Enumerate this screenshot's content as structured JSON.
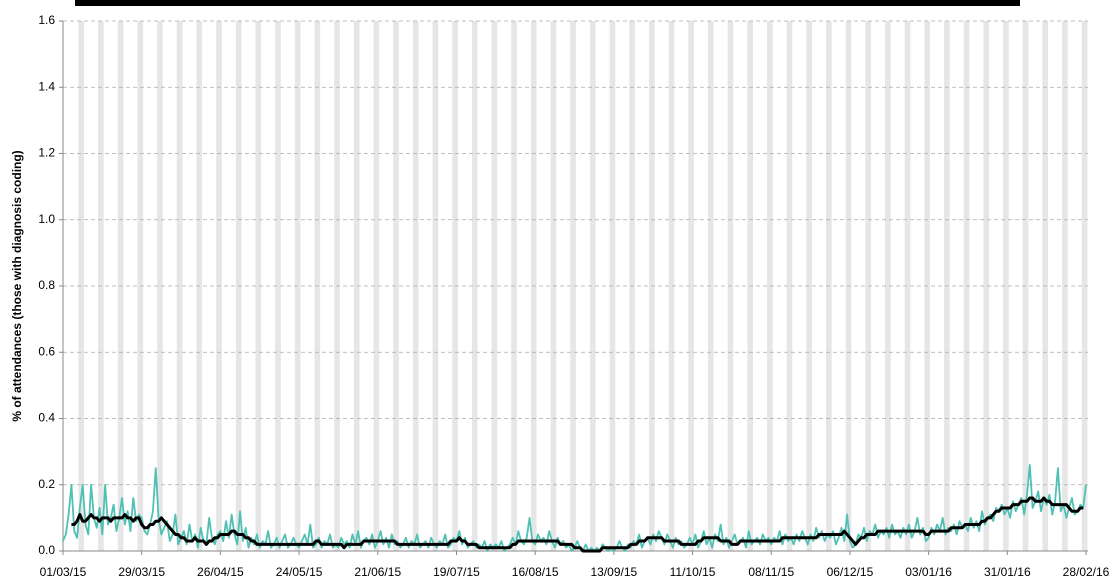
{
  "chart_data": {
    "type": "line",
    "y_label": "% of attendances (those with diagnosis coding)",
    "ylim": [
      0,
      1.6
    ],
    "yticks": [
      {
        "value": 0,
        "label": "0.0"
      },
      0.2,
      0.4,
      0.6,
      0.8,
      {
        "value": 1,
        "label": "1.0"
      },
      1.2,
      1.4,
      1.6
    ],
    "grid": true,
    "categories": [
      "01/03/15",
      null,
      null,
      null,
      null,
      null,
      null,
      null,
      null,
      null,
      null,
      null,
      null,
      null,
      null,
      null,
      null,
      null,
      null,
      null,
      null,
      null,
      null,
      null,
      null,
      null,
      null,
      null,
      "29/03/15",
      null,
      null,
      null,
      null,
      null,
      null,
      null,
      null,
      null,
      null,
      null,
      null,
      null,
      null,
      null,
      null,
      null,
      null,
      null,
      null,
      null,
      null,
      null,
      null,
      null,
      null,
      null,
      "26/04/15",
      null,
      null,
      null,
      null,
      null,
      null,
      null,
      null,
      null,
      null,
      null,
      null,
      null,
      null,
      null,
      null,
      null,
      null,
      null,
      null,
      null,
      null,
      null,
      null,
      null,
      null,
      null,
      "24/05/15",
      null,
      null,
      null,
      null,
      null,
      null,
      null,
      null,
      null,
      null,
      null,
      null,
      null,
      null,
      null,
      null,
      null,
      null,
      null,
      null,
      null,
      null,
      null,
      null,
      null,
      null,
      null,
      "21/06/15",
      null,
      null,
      null,
      null,
      null,
      null,
      null,
      null,
      null,
      null,
      null,
      null,
      null,
      null,
      null,
      null,
      null,
      null,
      null,
      null,
      null,
      null,
      null,
      null,
      null,
      null,
      null,
      "19/07/15",
      null,
      null,
      null,
      null,
      null,
      null,
      null,
      null,
      null,
      null,
      null,
      null,
      null,
      null,
      null,
      null,
      null,
      null,
      null,
      null,
      null,
      null,
      null,
      null,
      null,
      null,
      null,
      "16/08/15",
      null,
      null,
      null,
      null,
      null,
      null,
      null,
      null,
      null,
      null,
      null,
      null,
      null,
      null,
      null,
      null,
      null,
      null,
      null,
      null,
      null,
      null,
      null,
      null,
      null,
      null,
      null,
      "13/09/15",
      null,
      null,
      null,
      null,
      null,
      null,
      null,
      null,
      null,
      null,
      null,
      null,
      null,
      null,
      null,
      null,
      null,
      null,
      null,
      null,
      null,
      null,
      null,
      null,
      null,
      null,
      null,
      "11/10/15",
      null,
      null,
      null,
      null,
      null,
      null,
      null,
      null,
      null,
      null,
      null,
      null,
      null,
      null,
      null,
      null,
      null,
      null,
      null,
      null,
      null,
      null,
      null,
      null,
      null,
      null,
      null,
      "08/11/15",
      null,
      null,
      null,
      null,
      null,
      null,
      null,
      null,
      null,
      null,
      null,
      null,
      null,
      null,
      null,
      null,
      null,
      null,
      null,
      null,
      null,
      null,
      null,
      null,
      null,
      null,
      null,
      "06/12/15",
      null,
      null,
      null,
      null,
      null,
      null,
      null,
      null,
      null,
      null,
      null,
      null,
      null,
      null,
      null,
      null,
      null,
      null,
      null,
      null,
      null,
      null,
      null,
      null,
      null,
      null,
      null,
      "03/01/16",
      null,
      null,
      null,
      null,
      null,
      null,
      null,
      null,
      null,
      null,
      null,
      null,
      null,
      null,
      null,
      null,
      null,
      null,
      null,
      null,
      null,
      null,
      null,
      null,
      null,
      null,
      null,
      "31/01/16",
      null,
      null,
      null,
      null,
      null,
      null,
      null,
      null,
      null,
      null,
      null,
      null,
      null,
      null,
      null,
      null,
      null,
      null,
      null,
      null,
      null,
      null,
      null,
      null,
      null,
      null,
      null,
      "28/02/16"
    ],
    "series": [
      {
        "color": "#4fc0b4",
        "values": [
          0.03,
          0.05,
          0.11,
          0.2,
          0.06,
          0.04,
          0.13,
          0.2,
          0.08,
          0.05,
          0.2,
          0.1,
          0.07,
          0.13,
          0.05,
          0.2,
          0.08,
          0.1,
          0.14,
          0.06,
          0.1,
          0.16,
          0.08,
          0.12,
          0.06,
          0.16,
          0.09,
          0.11,
          0.1,
          0.06,
          0.05,
          0.08,
          0.12,
          0.25,
          0.1,
          0.05,
          0.07,
          0.09,
          0.03,
          0.05,
          0.11,
          0.02,
          0.04,
          0.06,
          0.02,
          0.08,
          0.03,
          0.05,
          0.01,
          0.07,
          0.03,
          0.02,
          0.1,
          0.04,
          0.02,
          0.05,
          0.06,
          0.03,
          0.09,
          0.04,
          0.11,
          0.05,
          0.02,
          0.12,
          0.03,
          0.07,
          0.01,
          0.04,
          0.02,
          0.05,
          0.01,
          0.03,
          0.02,
          0.06,
          0.01,
          0.02,
          0.04,
          0.01,
          0.03,
          0.05,
          0.01,
          0.02,
          0.04,
          0.02,
          0.01,
          0.03,
          0.05,
          0.02,
          0.08,
          0.01,
          0.02,
          0.04,
          0.01,
          0.03,
          0.02,
          0.05,
          0.01,
          0.02,
          0.01,
          0.04,
          0.02,
          0.03,
          0.01,
          0.05,
          0.02,
          0.06,
          0.01,
          0.03,
          0.04,
          0.02,
          0.05,
          0.01,
          0.03,
          0.06,
          0.02,
          0.04,
          0.01,
          0.05,
          0.02,
          0.03,
          0.01,
          0.02,
          0.04,
          0.01,
          0.03,
          0.02,
          0.05,
          0.01,
          0.02,
          0.03,
          0.01,
          0.04,
          0.02,
          0.01,
          0.03,
          0.02,
          0.05,
          0.01,
          0.02,
          0.04,
          0.03,
          0.06,
          0.02,
          0.04,
          0.01,
          0.02,
          0.03,
          0.01,
          0.02,
          0.01,
          0.03,
          0,
          0.02,
          0.01,
          0.02,
          0.01,
          0.03,
          0,
          0.01,
          0.02,
          0.04,
          0.02,
          0.06,
          0.03,
          0.02,
          0.04,
          0.1,
          0.03,
          0.02,
          0.05,
          0.03,
          0.04,
          0.02,
          0.06,
          0.03,
          0.01,
          0.04,
          0.02,
          0.03,
          0.01,
          0.02,
          0,
          0.01,
          0.03,
          0.01,
          0,
          0.02,
          0,
          0.01,
          0,
          0.01,
          0,
          0.02,
          0.01,
          0,
          0.01,
          0,
          0.01,
          0.03,
          0.01,
          0,
          0.02,
          0.01,
          0.03,
          0.02,
          0.05,
          0.01,
          0.03,
          0.04,
          0.02,
          0.05,
          0.03,
          0.06,
          0.04,
          0.02,
          0.05,
          0.03,
          0.01,
          0.04,
          0.02,
          0.03,
          0.01,
          0.02,
          0.04,
          0.02,
          0.05,
          0.01,
          0.03,
          0.06,
          0.02,
          0.04,
          0.01,
          0.05,
          0.03,
          0.08,
          0.02,
          0.04,
          0.01,
          0.03,
          0.05,
          0.02,
          0.03,
          0.04,
          0.01,
          0.06,
          0.02,
          0.03,
          0.04,
          0.02,
          0.05,
          0.03,
          0.04,
          0.02,
          0.04,
          0.03,
          0.06,
          0.02,
          0.05,
          0.03,
          0.04,
          0.02,
          0.05,
          0.03,
          0.06,
          0.04,
          0.02,
          0.05,
          0.03,
          0.07,
          0.04,
          0.06,
          0.03,
          0.05,
          0.04,
          0.06,
          0.02,
          0.04,
          0.07,
          0.03,
          0.11,
          0.03,
          0.01,
          0.02,
          0.05,
          0.04,
          0.07,
          0.03,
          0.06,
          0.05,
          0.08,
          0.04,
          0.06,
          0.05,
          0.07,
          0.04,
          0.08,
          0.05,
          0.06,
          0.04,
          0.07,
          0.05,
          0.08,
          0.04,
          0.06,
          0.1,
          0.05,
          0.07,
          0.03,
          0.04,
          0.07,
          0.05,
          0.08,
          0.06,
          0.1,
          0.05,
          0.07,
          0.06,
          0.08,
          0.05,
          0.09,
          0.07,
          0.08,
          0.06,
          0.1,
          0.07,
          0.09,
          0.06,
          0.12,
          0.08,
          0.1,
          0.11,
          0.09,
          0.13,
          0.12,
          0.14,
          0.11,
          0.13,
          0.1,
          0.15,
          0.12,
          0.14,
          0.16,
          0.11,
          0.17,
          0.26,
          0.13,
          0.15,
          0.18,
          0.12,
          0.16,
          0.14,
          0.17,
          0.11,
          0.15,
          0.25,
          0.12,
          0.14,
          0.1,
          0.13,
          0.16,
          0.11,
          0.12,
          0.14,
          0.13,
          0.2
        ]
      },
      {
        "color": "#000000",
        "values": [
          null,
          null,
          null,
          0.08,
          0.08,
          0.09,
          0.11,
          0.09,
          0.09,
          0.1,
          0.11,
          0.1,
          0.1,
          0.09,
          0.1,
          0.1,
          0.1,
          0.09,
          0.1,
          0.1,
          0.1,
          0.1,
          0.11,
          0.1,
          0.1,
          0.09,
          0.1,
          0.1,
          0.08,
          0.07,
          0.07,
          0.08,
          0.08,
          0.09,
          0.09,
          0.1,
          0.09,
          0.08,
          0.07,
          0.06,
          0.05,
          0.05,
          0.04,
          0.04,
          0.03,
          0.03,
          0.03,
          0.04,
          0.03,
          0.03,
          0.03,
          0.02,
          0.03,
          0.03,
          0.04,
          0.04,
          0.05,
          0.05,
          0.05,
          0.05,
          0.06,
          0.06,
          0.05,
          0.05,
          0.05,
          0.04,
          0.04,
          0.03,
          0.03,
          0.02,
          0.02,
          0.02,
          0.02,
          0.02,
          0.02,
          0.02,
          0.02,
          0.02,
          0.02,
          0.02,
          0.02,
          0.02,
          0.02,
          0.02,
          0.02,
          0.02,
          0.02,
          0.02,
          0.02,
          0.02,
          0.03,
          0.03,
          0.02,
          0.02,
          0.02,
          0.02,
          0.02,
          0.02,
          0.02,
          0.02,
          0.01,
          0.02,
          0.02,
          0.02,
          0.02,
          0.02,
          0.02,
          0.03,
          0.03,
          0.03,
          0.03,
          0.03,
          0.03,
          0.03,
          0.03,
          0.03,
          0.03,
          0.03,
          0.03,
          0.02,
          0.02,
          0.02,
          0.02,
          0.02,
          0.02,
          0.02,
          0.02,
          0.02,
          0.02,
          0.02,
          0.02,
          0.02,
          0.02,
          0.02,
          0.02,
          0.02,
          0.02,
          0.02,
          0.03,
          0.03,
          0.03,
          0.04,
          0.03,
          0.03,
          0.02,
          0.02,
          0.02,
          0.02,
          0.01,
          0.01,
          0.01,
          0.01,
          0.01,
          0.01,
          0.01,
          0.01,
          0.01,
          0.01,
          0.01,
          0.01,
          0.02,
          0.02,
          0.03,
          0.03,
          0.03,
          0.03,
          0.03,
          0.03,
          0.03,
          0.03,
          0.03,
          0.03,
          0.03,
          0.03,
          0.03,
          0.03,
          0.03,
          0.02,
          0.02,
          0.02,
          0.02,
          0.02,
          0.01,
          0.01,
          0.01,
          0,
          0,
          0,
          0,
          0,
          0,
          0,
          0.01,
          0.01,
          0.01,
          0.01,
          0.01,
          0.01,
          0.01,
          0.01,
          0.01,
          0.01,
          0.02,
          0.02,
          0.02,
          0.03,
          0.03,
          0.03,
          0.04,
          0.04,
          0.04,
          0.04,
          0.04,
          0.04,
          0.03,
          0.03,
          0.03,
          0.03,
          0.03,
          0.03,
          0.02,
          0.02,
          0.02,
          0.02,
          0.02,
          0.02,
          0.03,
          0.03,
          0.04,
          0.04,
          0.04,
          0.04,
          0.04,
          0.04,
          0.03,
          0.03,
          0.03,
          0.03,
          0.02,
          0.02,
          0.02,
          0.03,
          0.03,
          0.03,
          0.03,
          0.03,
          0.03,
          0.03,
          0.03,
          0.03,
          0.03,
          0.03,
          0.03,
          0.03,
          0.03,
          0.03,
          0.04,
          0.04,
          0.04,
          0.04,
          0.04,
          0.04,
          0.04,
          0.04,
          0.04,
          0.04,
          0.04,
          0.04,
          0.04,
          0.05,
          0.05,
          0.05,
          0.05,
          0.05,
          0.05,
          0.05,
          0.05,
          0.05,
          0.06,
          0.05,
          0.04,
          0.03,
          0.02,
          0.03,
          0.04,
          0.04,
          0.05,
          0.05,
          0.05,
          0.05,
          0.06,
          0.06,
          0.06,
          0.06,
          0.06,
          0.06,
          0.06,
          0.06,
          0.06,
          0.06,
          0.06,
          0.06,
          0.06,
          0.06,
          0.06,
          0.06,
          0.06,
          0.05,
          0.05,
          0.06,
          0.06,
          0.06,
          0.06,
          0.06,
          0.06,
          0.06,
          0.07,
          0.07,
          0.07,
          0.07,
          0.07,
          0.08,
          0.08,
          0.08,
          0.08,
          0.08,
          0.08,
          0.09,
          0.09,
          0.1,
          0.1,
          0.11,
          0.12,
          0.12,
          0.13,
          0.13,
          0.13,
          0.13,
          0.14,
          0.14,
          0.14,
          0.15,
          0.15,
          0.15,
          0.16,
          0.16,
          0.15,
          0.15,
          0.15,
          0.16,
          0.15,
          0.15,
          0.14,
          0.14,
          0.14,
          0.14,
          0.14,
          0.14,
          0.13,
          0.12,
          0.12,
          0.12,
          0.13,
          0.13,
          null
        ]
      }
    ]
  }
}
